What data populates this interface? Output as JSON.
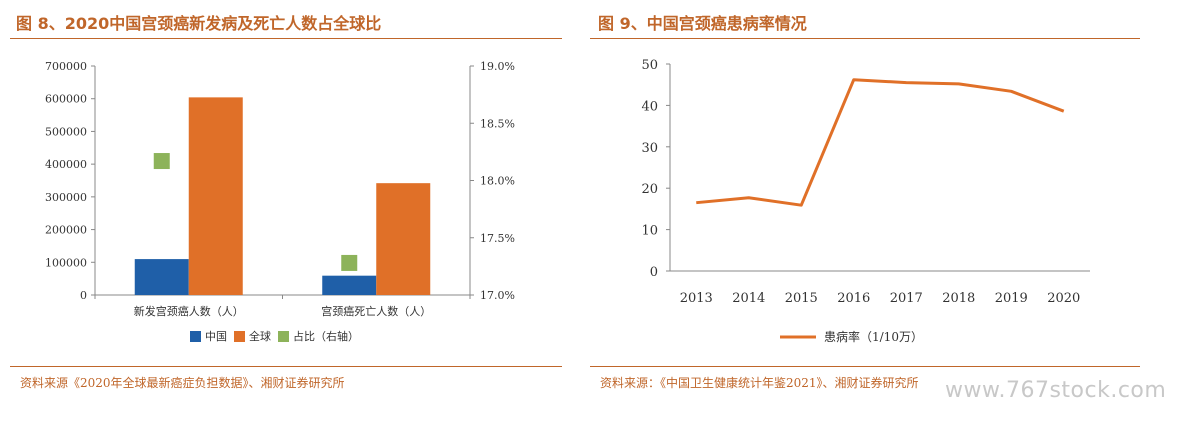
{
  "left": {
    "title": "图 8、2020中国宫颈癌新发病及死亡人数占全球比",
    "source": "资料来源《2020年全球最新癌症负担数据》、湘财证券研究所"
  },
  "right": {
    "title": "图 9、中国宫颈癌患病率情况",
    "source": "资料来源：《中国卫生健康统计年鉴2021》、湘财证券研究所"
  },
  "watermark": "www.767stock.com",
  "colors": {
    "accent": "#c0662a",
    "china": "#1f5fa8",
    "global": "#e07028",
    "share": "#8db35a"
  },
  "chart_data": [
    {
      "type": "bar",
      "categories": [
        "新发宫颈癌人数（人）",
        "宫颈癌死亡人数（人）"
      ],
      "series": [
        {
          "name": "中国",
          "axis": "left",
          "values": [
            109741,
            59060
          ]
        },
        {
          "name": "全球",
          "axis": "left",
          "values": [
            604127,
            341831
          ]
        },
        {
          "name": "占比（右轴）",
          "axis": "right",
          "type": "point",
          "values": [
            18.17,
            17.28
          ]
        }
      ],
      "ylim": [
        0,
        700000
      ],
      "yticks": [
        "0",
        "100000",
        "200000",
        "300000",
        "400000",
        "500000",
        "600000",
        "700000"
      ],
      "y2lim": [
        17.0,
        19.0
      ],
      "y2ticks": [
        "17.0%",
        "17.5%",
        "18.0%",
        "18.5%",
        "19.0%"
      ],
      "legend": "bottom"
    },
    {
      "type": "line",
      "x": [
        "2013",
        "2014",
        "2015",
        "2016",
        "2017",
        "2018",
        "2019",
        "2020"
      ],
      "series": [
        {
          "name": "患病率（1/10万）",
          "values": [
            16.5,
            17.7,
            15.9,
            46.2,
            45.5,
            45.2,
            43.4,
            38.6
          ]
        }
      ],
      "ylim": [
        0,
        50
      ],
      "yticks": [
        "0",
        "10",
        "20",
        "30",
        "40",
        "50"
      ],
      "legend": "bottom"
    }
  ]
}
